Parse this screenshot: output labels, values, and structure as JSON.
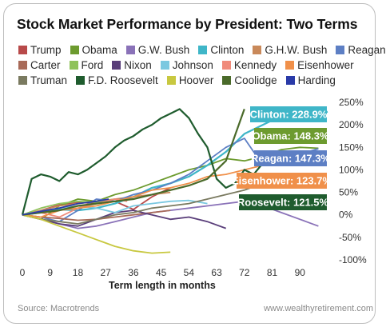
{
  "chart_data": {
    "type": "line",
    "title": "Stock Market Performance by President: Two Terms",
    "xlabel": "Term length in months",
    "ylabel": "",
    "xlim": [
      0,
      99
    ],
    "ylim": [
      -100,
      250
    ],
    "x_ticks": [
      0,
      9,
      18,
      27,
      36,
      45,
      54,
      63,
      72,
      81,
      90
    ],
    "y_ticks": [
      250,
      200,
      150,
      100,
      50,
      0,
      -50,
      -100
    ],
    "y_tick_labels": [
      "250%",
      "200%",
      "150%",
      "100%",
      "50%",
      "0%",
      "-50%",
      "-100%"
    ],
    "grid": false,
    "legend_position": "top",
    "series": [
      {
        "name": "Trump",
        "color": "#b84a4a",
        "x": [
          0,
          6,
          12,
          18,
          24,
          30,
          36,
          42,
          48
        ],
        "y": [
          0,
          10,
          22,
          28,
          25,
          30,
          12,
          40,
          60
        ]
      },
      {
        "name": "Obama",
        "color": "#6d9b2f",
        "x": [
          0,
          6,
          12,
          18,
          24,
          30,
          36,
          42,
          48,
          54,
          60,
          66,
          72,
          78,
          84,
          90,
          96
        ],
        "y": [
          0,
          -10,
          20,
          35,
          30,
          45,
          55,
          70,
          85,
          100,
          110,
          125,
          120,
          130,
          145,
          150,
          148
        ]
      },
      {
        "name": "G.W. Bush",
        "color": "#8a72b8",
        "x": [
          0,
          6,
          12,
          18,
          24,
          30,
          36,
          42,
          48,
          54,
          60,
          66,
          72,
          78,
          84,
          90,
          96
        ],
        "y": [
          0,
          -10,
          -20,
          -30,
          -25,
          -15,
          -5,
          5,
          10,
          15,
          20,
          25,
          30,
          20,
          5,
          -10,
          -25
        ]
      },
      {
        "name": "Clinton",
        "color": "#3fb6c8",
        "x": [
          0,
          6,
          12,
          18,
          24,
          30,
          36,
          42,
          48,
          54,
          60,
          66,
          72,
          78,
          84,
          90,
          96,
          99
        ],
        "y": [
          0,
          5,
          12,
          10,
          15,
          25,
          40,
          60,
          70,
          85,
          110,
          140,
          180,
          200,
          220,
          230,
          225,
          229
        ]
      },
      {
        "name": "G.H.W. Bush",
        "color": "#c9895a",
        "x": [
          0,
          6,
          12,
          18,
          24,
          30,
          36,
          42,
          48
        ],
        "y": [
          0,
          10,
          20,
          25,
          30,
          35,
          40,
          45,
          50
        ]
      },
      {
        "name": "Reagan",
        "color": "#5d7fc4",
        "x": [
          0,
          6,
          12,
          18,
          24,
          30,
          36,
          42,
          48,
          54,
          60,
          66,
          72,
          78,
          84,
          90,
          96
        ],
        "y": [
          0,
          -5,
          -15,
          10,
          35,
          30,
          45,
          55,
          70,
          90,
          120,
          150,
          170,
          110,
          120,
          135,
          147
        ]
      },
      {
        "name": "Carter",
        "color": "#a86a58",
        "x": [
          0,
          6,
          12,
          18,
          24,
          30,
          36,
          42,
          48
        ],
        "y": [
          0,
          -5,
          -8,
          -12,
          -10,
          -5,
          0,
          5,
          10
        ]
      },
      {
        "name": "Ford",
        "color": "#8fc25a",
        "x": [
          0,
          6,
          12,
          18,
          24,
          30
        ],
        "y": [
          0,
          15,
          25,
          30,
          28,
          35
        ]
      },
      {
        "name": "Nixon",
        "color": "#5a3e7a",
        "x": [
          0,
          6,
          12,
          18,
          24,
          30,
          36,
          42,
          48,
          54,
          60,
          66
        ],
        "y": [
          0,
          -10,
          -20,
          -25,
          -10,
          5,
          10,
          0,
          -10,
          -5,
          -15,
          -30
        ]
      },
      {
        "name": "Johnson",
        "color": "#7ac8e0",
        "x": [
          0,
          6,
          12,
          18,
          24,
          30,
          36,
          42,
          48,
          54,
          60
        ],
        "y": [
          0,
          8,
          15,
          20,
          15,
          5,
          20,
          25,
          30,
          32,
          25
        ]
      },
      {
        "name": "Kennedy",
        "color": "#f08a7a",
        "x": [
          0,
          6,
          12,
          18,
          24,
          30,
          34
        ],
        "y": [
          0,
          5,
          -5,
          15,
          25,
          35,
          30
        ]
      },
      {
        "name": "Eisenhower",
        "color": "#f0904a",
        "x": [
          0,
          6,
          12,
          18,
          24,
          30,
          36,
          42,
          48,
          54,
          60,
          66,
          72,
          78,
          84,
          90,
          96
        ],
        "y": [
          0,
          -5,
          10,
          15,
          20,
          30,
          40,
          55,
          60,
          70,
          85,
          90,
          100,
          110,
          115,
          120,
          124
        ]
      },
      {
        "name": "Truman",
        "color": "#7a7a60",
        "x": [
          0,
          6,
          12,
          18,
          24,
          30,
          36,
          42,
          48,
          54,
          60,
          66,
          72,
          78,
          84,
          90
        ],
        "y": [
          0,
          -10,
          -15,
          -20,
          -10,
          0,
          5,
          15,
          20,
          25,
          35,
          45,
          55,
          70,
          80,
          90
        ]
      },
      {
        "name": "F.D. Roosevelt",
        "color": "#1f5c2e",
        "x": [
          0,
          3,
          6,
          9,
          12,
          15,
          18,
          21,
          24,
          27,
          30,
          33,
          36,
          39,
          42,
          45,
          48,
          51,
          54,
          57,
          60,
          63,
          66,
          69,
          72,
          75,
          78,
          81,
          84,
          87,
          90,
          93,
          96
        ],
        "y": [
          0,
          80,
          90,
          85,
          75,
          95,
          90,
          100,
          115,
          130,
          150,
          165,
          175,
          190,
          200,
          215,
          225,
          235,
          215,
          180,
          150,
          80,
          60,
          70,
          100,
          90,
          115,
          130,
          110,
          125,
          140,
          130,
          122
        ]
      },
      {
        "name": "Hoover",
        "color": "#c8c840",
        "x": [
          0,
          6,
          12,
          18,
          24,
          30,
          36,
          42,
          48
        ],
        "y": [
          0,
          -10,
          -25,
          -40,
          -55,
          -70,
          -80,
          -85,
          -83
        ]
      },
      {
        "name": "Coolidge",
        "color": "#4a6a2a",
        "x": [
          0,
          6,
          12,
          18,
          24,
          30,
          36,
          42,
          48,
          54,
          60,
          66,
          72
        ],
        "y": [
          0,
          5,
          10,
          20,
          25,
          30,
          35,
          45,
          55,
          65,
          80,
          120,
          235
        ]
      },
      {
        "name": "Harding",
        "color": "#2a3aa8",
        "x": [
          0,
          6,
          12,
          18,
          24,
          28
        ],
        "y": [
          0,
          8,
          15,
          25,
          30,
          35
        ]
      }
    ],
    "annotations": [
      {
        "label": "Clinton: 228.9%",
        "color": "#3fb6c8",
        "series": "Clinton"
      },
      {
        "label": "Obama: 148.3%",
        "color": "#6d9b2f",
        "series": "Obama"
      },
      {
        "label": "Reagan: 147.3%",
        "color": "#5d7fc4",
        "series": "Reagan"
      },
      {
        "label": "Eisenhower: 123.7%",
        "color": "#f0904a",
        "series": "Eisenhower"
      },
      {
        "label": "Roosevelt: 121.5%",
        "color": "#1f5c2e",
        "series": "F.D. Roosevelt"
      }
    ]
  },
  "footer": {
    "source": "Source: Macrotrends",
    "site": "www.wealthyretirement.com"
  }
}
